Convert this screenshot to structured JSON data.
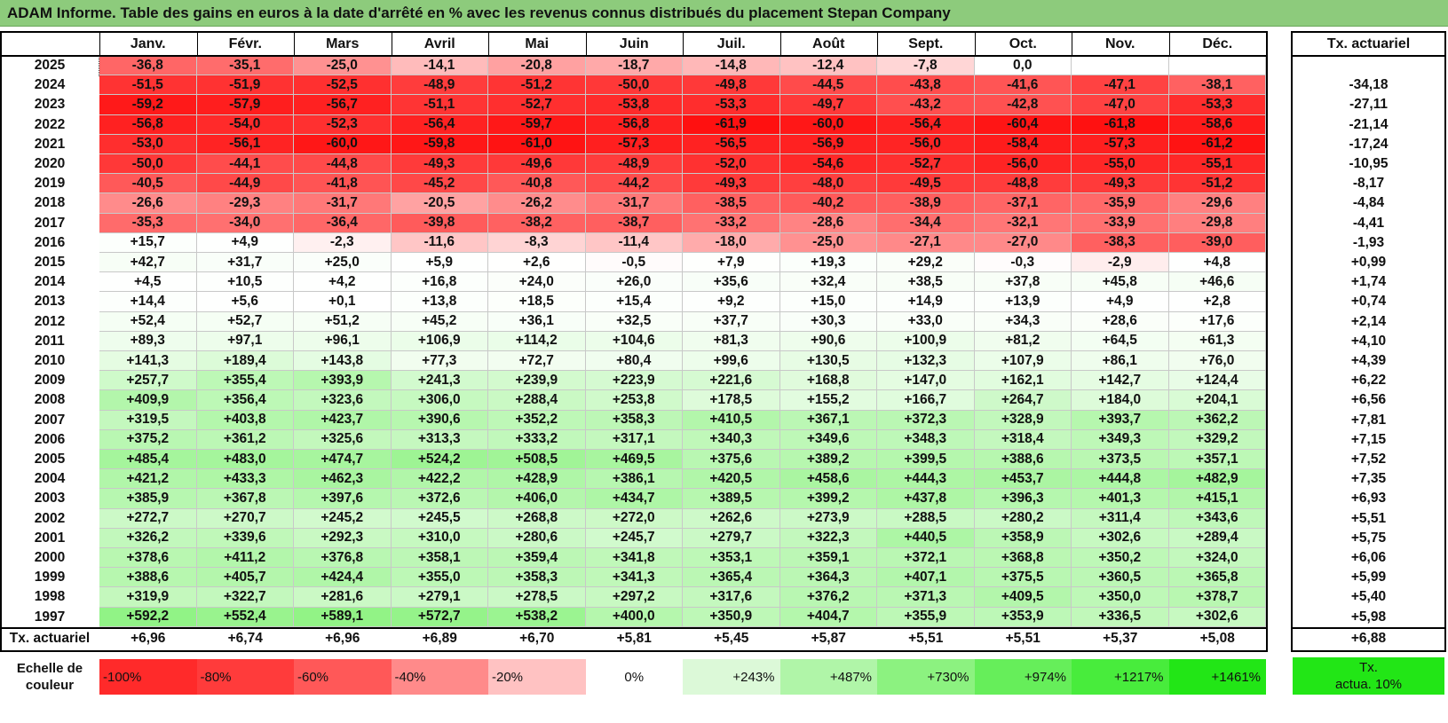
{
  "title": "ADAM Informe. Table des gains en euros à la date d'arrêté en % avec les revenus connus distribués du placement Stepan Company",
  "months": [
    "Janv.",
    "Févr.",
    "Mars",
    "Avril",
    "Mai",
    "Juin",
    "Juil.",
    "Août",
    "Sept.",
    "Oct.",
    "Nov.",
    "Déc."
  ],
  "rate_header": "Tx. actuariel",
  "rows": [
    {
      "year": "2025",
      "values": [
        "-36,8",
        "-35,1",
        "-25,0",
        "-14,1",
        "-20,8",
        "-18,7",
        "-14,8",
        "-12,4",
        "-7,8",
        "0,0",
        "",
        ""
      ],
      "rate": ""
    },
    {
      "year": "2024",
      "values": [
        "-51,5",
        "-51,9",
        "-52,5",
        "-48,9",
        "-51,2",
        "-50,0",
        "-49,8",
        "-44,5",
        "-43,8",
        "-41,6",
        "-47,1",
        "-38,1"
      ],
      "rate": "-34,18"
    },
    {
      "year": "2023",
      "values": [
        "-59,2",
        "-57,9",
        "-56,7",
        "-51,1",
        "-52,7",
        "-53,8",
        "-53,3",
        "-49,7",
        "-43,2",
        "-42,8",
        "-47,0",
        "-53,3"
      ],
      "rate": "-27,11"
    },
    {
      "year": "2022",
      "values": [
        "-56,8",
        "-54,0",
        "-52,3",
        "-56,4",
        "-59,7",
        "-56,8",
        "-61,9",
        "-60,0",
        "-56,4",
        "-60,4",
        "-61,8",
        "-58,6"
      ],
      "rate": "-21,14"
    },
    {
      "year": "2021",
      "values": [
        "-53,0",
        "-56,1",
        "-60,0",
        "-59,8",
        "-61,0",
        "-57,3",
        "-56,5",
        "-56,9",
        "-56,0",
        "-58,4",
        "-57,3",
        "-61,2"
      ],
      "rate": "-17,24"
    },
    {
      "year": "2020",
      "values": [
        "-50,0",
        "-44,1",
        "-44,8",
        "-49,3",
        "-49,6",
        "-48,9",
        "-52,0",
        "-54,6",
        "-52,7",
        "-56,0",
        "-55,0",
        "-55,1"
      ],
      "rate": "-10,95"
    },
    {
      "year": "2019",
      "values": [
        "-40,5",
        "-44,9",
        "-41,8",
        "-45,2",
        "-40,8",
        "-44,2",
        "-49,3",
        "-48,0",
        "-49,5",
        "-48,8",
        "-49,3",
        "-51,2"
      ],
      "rate": "-8,17"
    },
    {
      "year": "2018",
      "values": [
        "-26,6",
        "-29,3",
        "-31,7",
        "-20,5",
        "-26,2",
        "-31,7",
        "-38,5",
        "-40,2",
        "-38,9",
        "-37,1",
        "-35,9",
        "-29,6"
      ],
      "rate": "-4,84"
    },
    {
      "year": "2017",
      "values": [
        "-35,3",
        "-34,0",
        "-36,4",
        "-39,8",
        "-38,2",
        "-38,7",
        "-33,2",
        "-28,6",
        "-34,4",
        "-32,1",
        "-33,9",
        "-29,8"
      ],
      "rate": "-4,41"
    },
    {
      "year": "2016",
      "values": [
        "+15,7",
        "+4,9",
        "-2,3",
        "-11,6",
        "-8,3",
        "-11,4",
        "-18,0",
        "-25,0",
        "-27,1",
        "-27,0",
        "-38,3",
        "-39,0"
      ],
      "rate": "-1,93"
    },
    {
      "year": "2015",
      "values": [
        "+42,7",
        "+31,7",
        "+25,0",
        "+5,9",
        "+2,6",
        "-0,5",
        "+7,9",
        "+19,3",
        "+29,2",
        "-0,3",
        "-2,9",
        "+4,8"
      ],
      "rate": "+0,99"
    },
    {
      "year": "2014",
      "values": [
        "+4,5",
        "+10,5",
        "+4,2",
        "+16,8",
        "+24,0",
        "+26,0",
        "+35,6",
        "+32,4",
        "+38,5",
        "+37,8",
        "+45,8",
        "+46,6"
      ],
      "rate": "+1,74"
    },
    {
      "year": "2013",
      "values": [
        "+14,4",
        "+5,6",
        "+0,1",
        "+13,8",
        "+18,5",
        "+15,4",
        "+9,2",
        "+15,0",
        "+14,9",
        "+13,9",
        "+4,9",
        "+2,8"
      ],
      "rate": "+0,74"
    },
    {
      "year": "2012",
      "values": [
        "+52,4",
        "+52,7",
        "+51,2",
        "+45,2",
        "+36,1",
        "+32,5",
        "+37,7",
        "+30,3",
        "+33,0",
        "+34,3",
        "+28,6",
        "+17,6"
      ],
      "rate": "+2,14"
    },
    {
      "year": "2011",
      "values": [
        "+89,3",
        "+97,1",
        "+96,1",
        "+106,9",
        "+114,2",
        "+104,6",
        "+81,3",
        "+90,6",
        "+100,9",
        "+81,2",
        "+64,5",
        "+61,3"
      ],
      "rate": "+4,10"
    },
    {
      "year": "2010",
      "values": [
        "+141,3",
        "+189,4",
        "+143,8",
        "+77,3",
        "+72,7",
        "+80,4",
        "+99,6",
        "+130,5",
        "+132,3",
        "+107,9",
        "+86,1",
        "+76,0"
      ],
      "rate": "+4,39"
    },
    {
      "year": "2009",
      "values": [
        "+257,7",
        "+355,4",
        "+393,9",
        "+241,3",
        "+239,9",
        "+223,9",
        "+221,6",
        "+168,8",
        "+147,0",
        "+162,1",
        "+142,7",
        "+124,4"
      ],
      "rate": "+6,22"
    },
    {
      "year": "2008",
      "values": [
        "+409,9",
        "+356,4",
        "+323,6",
        "+306,0",
        "+288,4",
        "+253,8",
        "+178,5",
        "+155,2",
        "+166,7",
        "+264,7",
        "+184,0",
        "+204,1"
      ],
      "rate": "+6,56"
    },
    {
      "year": "2007",
      "values": [
        "+319,5",
        "+403,8",
        "+423,7",
        "+390,6",
        "+352,2",
        "+358,3",
        "+410,5",
        "+367,1",
        "+372,3",
        "+328,9",
        "+393,7",
        "+362,2"
      ],
      "rate": "+7,81"
    },
    {
      "year": "2006",
      "values": [
        "+375,2",
        "+361,2",
        "+325,6",
        "+313,3",
        "+333,2",
        "+317,1",
        "+340,3",
        "+349,6",
        "+348,3",
        "+318,4",
        "+349,3",
        "+329,2"
      ],
      "rate": "+7,15"
    },
    {
      "year": "2005",
      "values": [
        "+485,4",
        "+483,0",
        "+474,7",
        "+524,2",
        "+508,5",
        "+469,5",
        "+375,6",
        "+389,2",
        "+399,5",
        "+388,6",
        "+373,5",
        "+357,1"
      ],
      "rate": "+7,52"
    },
    {
      "year": "2004",
      "values": [
        "+421,2",
        "+433,3",
        "+462,3",
        "+422,2",
        "+428,9",
        "+386,1",
        "+420,5",
        "+458,6",
        "+444,3",
        "+453,7",
        "+444,8",
        "+482,9"
      ],
      "rate": "+7,35"
    },
    {
      "year": "2003",
      "values": [
        "+385,9",
        "+367,8",
        "+397,6",
        "+372,6",
        "+406,0",
        "+434,7",
        "+389,5",
        "+399,2",
        "+437,8",
        "+396,3",
        "+401,3",
        "+415,1"
      ],
      "rate": "+6,93"
    },
    {
      "year": "2002",
      "values": [
        "+272,7",
        "+270,7",
        "+245,2",
        "+245,5",
        "+268,8",
        "+272,0",
        "+262,6",
        "+273,9",
        "+288,5",
        "+280,2",
        "+311,4",
        "+343,6"
      ],
      "rate": "+5,51"
    },
    {
      "year": "2001",
      "values": [
        "+326,2",
        "+339,6",
        "+292,3",
        "+310,0",
        "+280,6",
        "+245,7",
        "+279,7",
        "+322,3",
        "+440,5",
        "+358,9",
        "+302,6",
        "+289,4"
      ],
      "rate": "+5,75"
    },
    {
      "year": "2000",
      "values": [
        "+378,6",
        "+411,2",
        "+376,8",
        "+358,1",
        "+359,4",
        "+341,8",
        "+353,1",
        "+359,1",
        "+372,1",
        "+368,8",
        "+350,2",
        "+324,0"
      ],
      "rate": "+6,06"
    },
    {
      "year": "1999",
      "values": [
        "+388,6",
        "+405,7",
        "+424,4",
        "+355,0",
        "+358,3",
        "+341,3",
        "+365,4",
        "+364,3",
        "+407,1",
        "+375,5",
        "+360,5",
        "+365,8"
      ],
      "rate": "+5,99"
    },
    {
      "year": "1998",
      "values": [
        "+319,9",
        "+322,7",
        "+281,6",
        "+279,1",
        "+278,5",
        "+297,2",
        "+317,6",
        "+376,2",
        "+371,3",
        "+409,5",
        "+350,0",
        "+378,7"
      ],
      "rate": "+5,40"
    },
    {
      "year": "1997",
      "values": [
        "+592,2",
        "+552,4",
        "+589,1",
        "+572,7",
        "+538,2",
        "+400,0",
        "+350,9",
        "+404,7",
        "+355,9",
        "+353,9",
        "+336,5",
        "+302,6"
      ],
      "rate": "+5,98"
    }
  ],
  "footer": {
    "label": "Tx. actuariel",
    "values": [
      "+6,96",
      "+6,74",
      "+6,96",
      "+6,89",
      "+6,70",
      "+5,81",
      "+5,45",
      "+5,87",
      "+5,51",
      "+5,51",
      "+5,37",
      "+5,08"
    ],
    "rate": "+6,88"
  },
  "legend": {
    "label_line1": "Echelle de",
    "label_line2": "couleur",
    "items": [
      {
        "text": "-100%",
        "color": "#ff2a2a"
      },
      {
        "text": "-80%",
        "color": "#ff3b3b"
      },
      {
        "text": "-60%",
        "color": "#ff5858"
      },
      {
        "text": "-40%",
        "color": "#ff8a8a"
      },
      {
        "text": "-20%",
        "color": "#ffc2c2"
      },
      {
        "text": "0%",
        "color": "#ffffff"
      },
      {
        "text": "+243%",
        "color": "#dcf9d8"
      },
      {
        "text": "+487%",
        "color": "#b0f5a8"
      },
      {
        "text": "+730%",
        "color": "#8cf280"
      },
      {
        "text": "+974%",
        "color": "#66ee5a"
      },
      {
        "text": "+1217%",
        "color": "#48ec3c"
      },
      {
        "text": "+1461%",
        "color": "#22e616"
      }
    ],
    "rate_line1": "Tx.",
    "rate_line2": "actua. 10%",
    "rate_color": "#22e616"
  },
  "colors": {
    "title_bg": "#8dcb7c",
    "negative_max": "#ff1010",
    "positive_max": "#22e616"
  }
}
